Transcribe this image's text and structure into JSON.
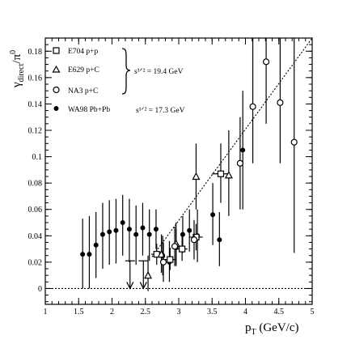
{
  "chart_data": {
    "type": "scatter",
    "xlabel": {
      "main": "p",
      "sub": "T",
      "rest": " (GeV/c)"
    },
    "ylabel": {
      "main": "γ",
      "sub": "direct",
      "mid": "/π",
      "sup": "0"
    },
    "xlim": [
      1,
      5
    ],
    "ylim": [
      -0.012,
      0.19
    ],
    "x_ticks": [
      1,
      1.5,
      2,
      2.5,
      3,
      3.5,
      4,
      4.5,
      5
    ],
    "x_tick_labels": [
      "1",
      "1.5",
      "2",
      "2.5",
      "3",
      "3.5",
      "4",
      "4.5",
      "5"
    ],
    "y_ticks": [
      0,
      0.02,
      0.04,
      0.06,
      0.08,
      0.1,
      0.12,
      0.14,
      0.16,
      0.18
    ],
    "y_tick_labels": [
      "0",
      "0.02",
      "0.04",
      "0.06",
      "0.08",
      "0.1",
      "0.12",
      "0.14",
      "0.16",
      "0.18"
    ],
    "legend": {
      "entries": [
        "E704 p+p",
        "E629 p+C",
        "NA3 p+C",
        "WA98 Pb+Pb"
      ],
      "energy_labels": [
        "s¹ᐟ² = 19.4 GeV",
        "s¹ᐟ² = 17.3 GeV"
      ]
    },
    "zero_line": 0,
    "fit_line": {
      "from": [
        2.6,
        0.024
      ],
      "to": [
        5,
        0.19
      ]
    },
    "series": [
      {
        "name": "WA98 Pb+Pb",
        "marker": "filled-circle",
        "points": [
          {
            "x": 1.56,
            "y": 0.026,
            "lo": 0.0,
            "hi": 0.053
          },
          {
            "x": 1.66,
            "y": 0.026,
            "lo": 0.0,
            "hi": 0.055
          },
          {
            "x": 1.76,
            "y": 0.033,
            "lo": 0.008,
            "hi": 0.058
          },
          {
            "x": 1.86,
            "y": 0.041,
            "lo": 0.015,
            "hi": 0.065
          },
          {
            "x": 1.96,
            "y": 0.043,
            "lo": 0.018,
            "hi": 0.067
          },
          {
            "x": 2.06,
            "y": 0.044,
            "lo": 0.019,
            "hi": 0.068
          },
          {
            "x": 2.16,
            "y": 0.05,
            "lo": 0.025,
            "hi": 0.071
          },
          {
            "x": 2.26,
            "y": 0.045,
            "lo": 0.02,
            "hi": 0.068
          },
          {
            "x": 2.36,
            "y": 0.041,
            "lo": 0.018,
            "hi": 0.063
          },
          {
            "x": 2.46,
            "y": 0.046,
            "lo": 0.025,
            "hi": 0.065
          },
          {
            "x": 2.56,
            "y": 0.041,
            "lo": 0.021,
            "hi": 0.06
          },
          {
            "x": 2.66,
            "y": 0.045,
            "lo": 0.03,
            "hi": 0.06
          },
          {
            "x": 2.76,
            "y": 0.025,
            "lo": 0.01,
            "hi": 0.04
          },
          {
            "x": 2.86,
            "y": 0.02,
            "lo": 0.005,
            "hi": 0.036
          },
          {
            "x": 2.96,
            "y": 0.031,
            "lo": 0.017,
            "hi": 0.045
          },
          {
            "x": 3.06,
            "y": 0.041,
            "lo": 0.027,
            "hi": 0.055
          },
          {
            "x": 3.16,
            "y": 0.044,
            "lo": 0.028,
            "hi": 0.06
          },
          {
            "x": 3.28,
            "y": 0.04,
            "lo": 0.02,
            "hi": 0.06
          },
          {
            "x": 3.51,
            "y": 0.056,
            "lo": 0.033,
            "hi": 0.08
          },
          {
            "x": 3.61,
            "y": 0.037,
            "lo": 0.017,
            "hi": 0.058
          },
          {
            "x": 3.96,
            "y": 0.105,
            "lo": 0.06,
            "hi": 0.15
          }
        ],
        "upper_limits": [
          {
            "x": 2.27,
            "y": 0.021
          },
          {
            "x": 2.47,
            "y": 0.021
          }
        ]
      },
      {
        "name": "E704 p+p",
        "marker": "open-square",
        "points": [
          {
            "x": 2.67,
            "y": 0.026,
            "lo": 0.018,
            "hi": 0.034,
            "xerr": 0.08
          },
          {
            "x": 2.87,
            "y": 0.022,
            "lo": 0.014,
            "hi": 0.031,
            "xerr": 0.08
          },
          {
            "x": 3.05,
            "y": 0.03,
            "lo": 0.021,
            "hi": 0.04,
            "xerr": 0.08
          },
          {
            "x": 3.26,
            "y": 0.039,
            "lo": 0.029,
            "hi": 0.049,
            "xerr": 0.1
          },
          {
            "x": 3.63,
            "y": 0.087,
            "lo": 0.065,
            "hi": 0.11,
            "xerr": 0.13
          }
        ]
      },
      {
        "name": "E629 p+C",
        "marker": "open-triangle",
        "points": [
          {
            "x": 2.54,
            "y": 0.01,
            "lo": -0.002,
            "hi": 0.025
          },
          {
            "x": 2.74,
            "y": 0.026,
            "lo": 0.012,
            "hi": 0.041
          },
          {
            "x": 2.96,
            "y": 0.034,
            "lo": 0.018,
            "hi": 0.05
          },
          {
            "x": 3.26,
            "y": 0.085,
            "lo": 0.06,
            "hi": 0.11
          },
          {
            "x": 3.75,
            "y": 0.086,
            "lo": 0.055,
            "hi": 0.12
          }
        ]
      },
      {
        "name": "NA3 p+C",
        "marker": "open-circle",
        "points": [
          {
            "x": 2.77,
            "y": 0.02,
            "lo": 0.005,
            "hi": 0.035
          },
          {
            "x": 2.94,
            "y": 0.032,
            "lo": 0.017,
            "hi": 0.047
          },
          {
            "x": 3.23,
            "y": 0.037,
            "lo": 0.022,
            "hi": 0.052
          },
          {
            "x": 3.92,
            "y": 0.095,
            "lo": 0.06,
            "hi": 0.13
          },
          {
            "x": 4.11,
            "y": 0.138,
            "lo": 0.095,
            "hi": 0.19
          },
          {
            "x": 4.31,
            "y": 0.172,
            "lo": 0.125,
            "hi": 0.19
          },
          {
            "x": 4.52,
            "y": 0.141,
            "lo": 0.095,
            "hi": 0.19
          },
          {
            "x": 4.73,
            "y": 0.111,
            "lo": 0.027,
            "hi": 0.19
          }
        ]
      }
    ]
  }
}
